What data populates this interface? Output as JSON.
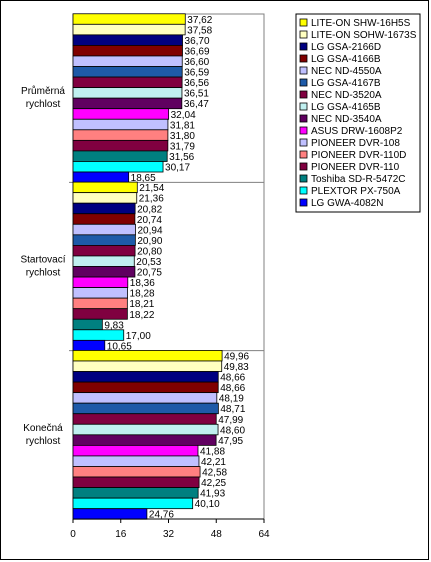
{
  "chart_data": {
    "type": "bar",
    "orientation": "horizontal",
    "title": "",
    "xlabel": "",
    "ylabel": "",
    "xlim": [
      0,
      64
    ],
    "x_ticks": [
      "0",
      "16",
      "32",
      "48",
      "64"
    ],
    "grid": "off",
    "legend_position": "top-right",
    "categories": [
      {
        "label_lines": [
          "Průměrná",
          "rychlost"
        ]
      },
      {
        "label_lines": [
          "Startovací",
          "rychlost"
        ]
      },
      {
        "label_lines": [
          "Konečná",
          "rychlost"
        ]
      }
    ],
    "series": [
      {
        "name": "LITE-ON SHW-16H5S",
        "color": "#ffff00",
        "values": [
          37.62,
          21.54,
          49.96
        ],
        "labels": [
          "37,62",
          "21,54",
          "49,96"
        ]
      },
      {
        "name": "LITE-ON SOHW-1673S",
        "color": "#ffffc0",
        "values": [
          37.58,
          21.36,
          49.83
        ],
        "labels": [
          "37,58",
          "21,36",
          "49,83"
        ]
      },
      {
        "name": "LG GSA-2166D",
        "color": "#000080",
        "values": [
          36.7,
          20.82,
          48.66
        ],
        "labels": [
          "36,70",
          "20,82",
          "48,66"
        ]
      },
      {
        "name": "LG GSA-4166B",
        "color": "#800000",
        "values": [
          36.69,
          20.74,
          48.66
        ],
        "labels": [
          "36,69",
          "20,74",
          "48,66"
        ]
      },
      {
        "name": "NEC ND-4550A",
        "color": "#c0c0ff",
        "values": [
          36.6,
          20.94,
          48.19
        ],
        "labels": [
          "36,60",
          "20,94",
          "48,19"
        ]
      },
      {
        "name": "LG GSA-4167B",
        "color": "#1e5aa8",
        "values": [
          36.59,
          20.9,
          48.71
        ],
        "labels": [
          "36,59",
          "20,90",
          "48,71"
        ]
      },
      {
        "name": "NEC ND-3520A",
        "color": "#800040",
        "values": [
          36.56,
          20.8,
          47.99
        ],
        "labels": [
          "36,56",
          "20,80",
          "47,99"
        ]
      },
      {
        "name": "LG GSA-4165B",
        "color": "#c0f0f0",
        "values": [
          36.51,
          20.53,
          48.6
        ],
        "labels": [
          "36,51",
          "20,53",
          "48,60"
        ]
      },
      {
        "name": "NEC ND-3540A",
        "color": "#600060",
        "values": [
          36.47,
          20.75,
          47.95
        ],
        "labels": [
          "36,47",
          "20,75",
          "47,95"
        ]
      },
      {
        "name": "ASUS DRW-1608P2",
        "color": "#ff00ff",
        "values": [
          32.04,
          18.36,
          41.88
        ],
        "labels": [
          "32,04",
          "18,36",
          "41,88"
        ]
      },
      {
        "name": "PIONEER DVR-108",
        "color": "#c0c0ff",
        "values": [
          31.81,
          18.28,
          42.21
        ],
        "labels": [
          "31,81",
          "18,28",
          "42,21"
        ]
      },
      {
        "name": "PIONEER DVR-110D",
        "color": "#ff8080",
        "values": [
          31.8,
          18.21,
          42.58
        ],
        "labels": [
          "31,80",
          "18,21",
          "42,58"
        ]
      },
      {
        "name": "PIONEER DVR-110",
        "color": "#800040",
        "values": [
          31.79,
          18.22,
          42.25
        ],
        "labels": [
          "31,79",
          "18,22",
          "42,25"
        ]
      },
      {
        "name": "Toshiba SD-R-5472C",
        "color": "#008080",
        "values": [
          31.56,
          9.83,
          41.93
        ],
        "labels": [
          "31,56",
          "9,83",
          "41,93"
        ]
      },
      {
        "name": "PLEXTOR PX-750A",
        "color": "#00ffff",
        "values": [
          30.17,
          17.0,
          40.1
        ],
        "labels": [
          "30,17",
          "17,00",
          "40,10"
        ]
      },
      {
        "name": "LG GWA-4082N",
        "color": "#0000ff",
        "values": [
          18.65,
          10.65,
          24.76
        ],
        "labels": [
          "18,65",
          "10,65",
          "24,76"
        ]
      }
    ]
  }
}
